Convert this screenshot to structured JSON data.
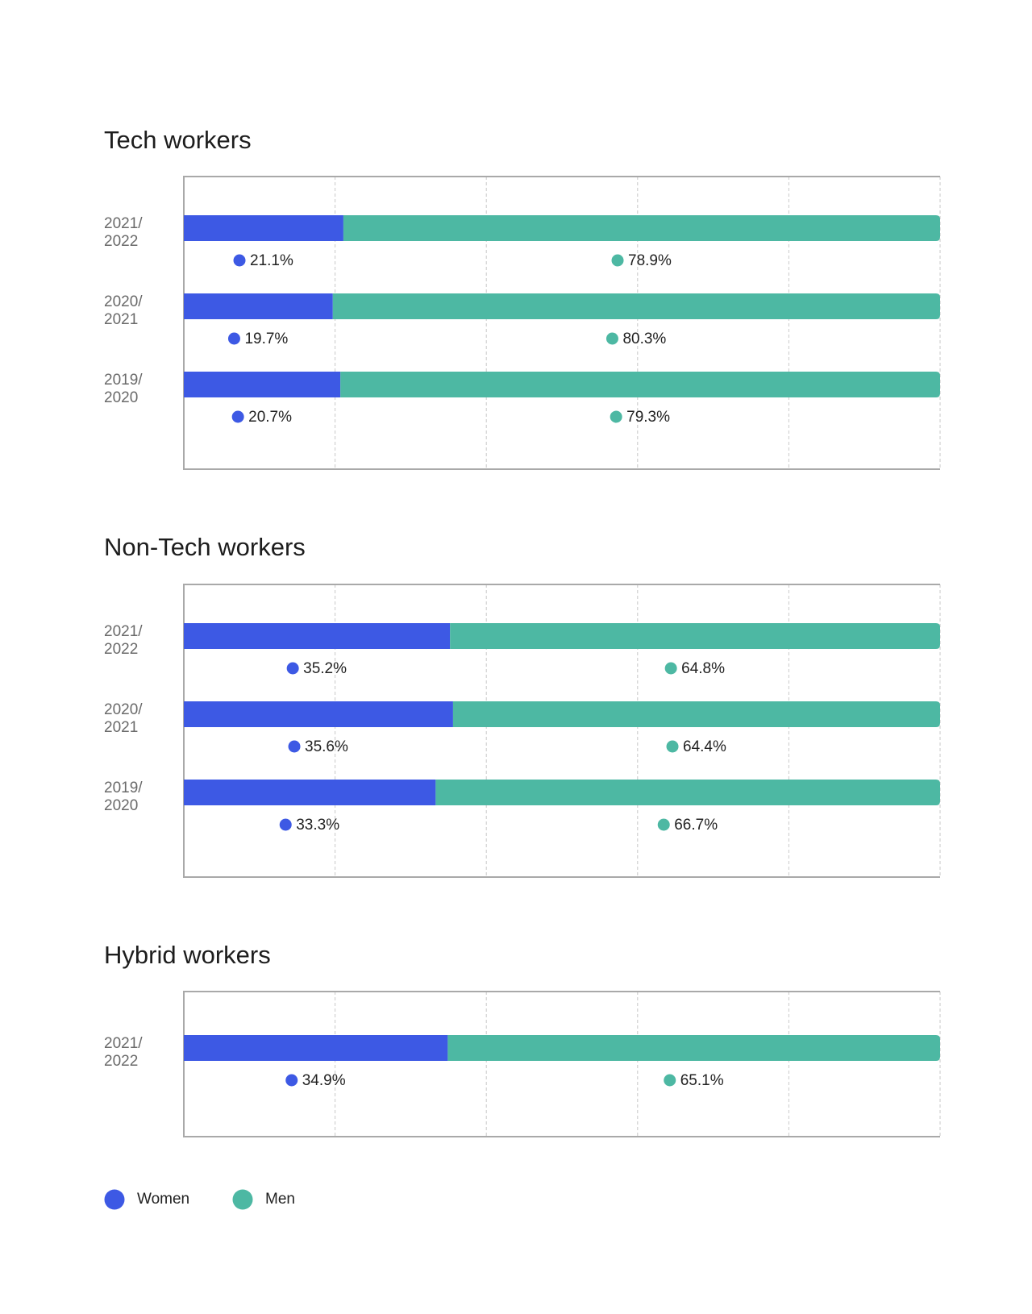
{
  "chart_data": [
    {
      "type": "bar",
      "title": "Tech workers",
      "categories": [
        "2021/2022",
        "2020/2021",
        "2019/2020"
      ],
      "xlim": [
        0,
        100
      ],
      "xticks": [
        0,
        20,
        40,
        60,
        80,
        100
      ],
      "series": [
        {
          "values": [
            21.1,
            19.7,
            20.7
          ],
          "value_labels": [
            "21.1%",
            "19.7%",
            "20.7%"
          ]
        },
        {
          "values": [
            78.9,
            80.3,
            79.3
          ],
          "value_labels": [
            "78.9%",
            "80.3%",
            "79.3%"
          ]
        }
      ]
    },
    {
      "type": "bar",
      "title": "Non-Tech workers",
      "categories": [
        "2021/2022",
        "2020/2021",
        "2019/2020"
      ],
      "xlim": [
        0,
        100
      ],
      "xticks": [
        0,
        20,
        40,
        60,
        80,
        100
      ],
      "series": [
        {
          "values": [
            35.2,
            35.6,
            33.3
          ],
          "value_labels": [
            "35.2%",
            "35.6%",
            "33.3%"
          ]
        },
        {
          "values": [
            64.8,
            64.4,
            66.7
          ],
          "value_labels": [
            "64.8%",
            "64.4%",
            "66.7%"
          ]
        }
      ]
    },
    {
      "type": "bar",
      "title": "Hybrid workers",
      "categories": [
        "2021/2022"
      ],
      "xlim": [
        0,
        100
      ],
      "xticks": [
        0,
        20,
        40,
        60,
        80,
        100
      ],
      "series": [
        {
          "values": [
            34.9
          ],
          "value_labels": [
            "34.9%"
          ]
        },
        {
          "values": [
            65.1
          ],
          "value_labels": [
            "65.1%"
          ]
        }
      ]
    }
  ],
  "legend": {
    "items": [
      {
        "name": "Women",
        "color": "#3d59e4"
      },
      {
        "name": "Men",
        "color": "#4db8a3"
      }
    ]
  }
}
